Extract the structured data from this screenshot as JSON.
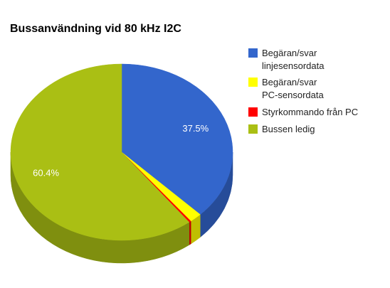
{
  "chart_data": {
    "type": "pie",
    "three_d": true,
    "title": "Bussanvändning vid 80 kHz I2C",
    "series": [
      {
        "name": "Begäran/svar linjesensordata",
        "legend_lines": [
          "Begäran/svar",
          "linjesensordata"
        ],
        "value": 37.5,
        "color": "#3366cc",
        "side_color": "#264c99",
        "label": ""
      },
      {
        "name": "Begäran/svar PC-sensordata",
        "legend_lines": [
          "Begäran/svar",
          "PC-sensordata"
        ],
        "value": 1.8,
        "color": "#ffff00",
        "side_color": "#bfbf00",
        "label": ""
      },
      {
        "name": "Styrkommando från PC",
        "legend_lines": [
          "Styrkommando från PC"
        ],
        "value": 0.3,
        "color": "#ff0000",
        "side_color": "#bf0000",
        "label": ""
      },
      {
        "name": "Bussen ledig",
        "legend_lines": [
          "Bussen ledig"
        ],
        "value": 60.4,
        "color": "#aabf14",
        "side_color": "#7f8f0f",
        "label": ""
      }
    ],
    "data_labels": [
      "37.5%",
      "",
      "",
      "60.4%"
    ],
    "legend_position": "right",
    "start_angle_deg": 0,
    "direction": "clockwise"
  }
}
